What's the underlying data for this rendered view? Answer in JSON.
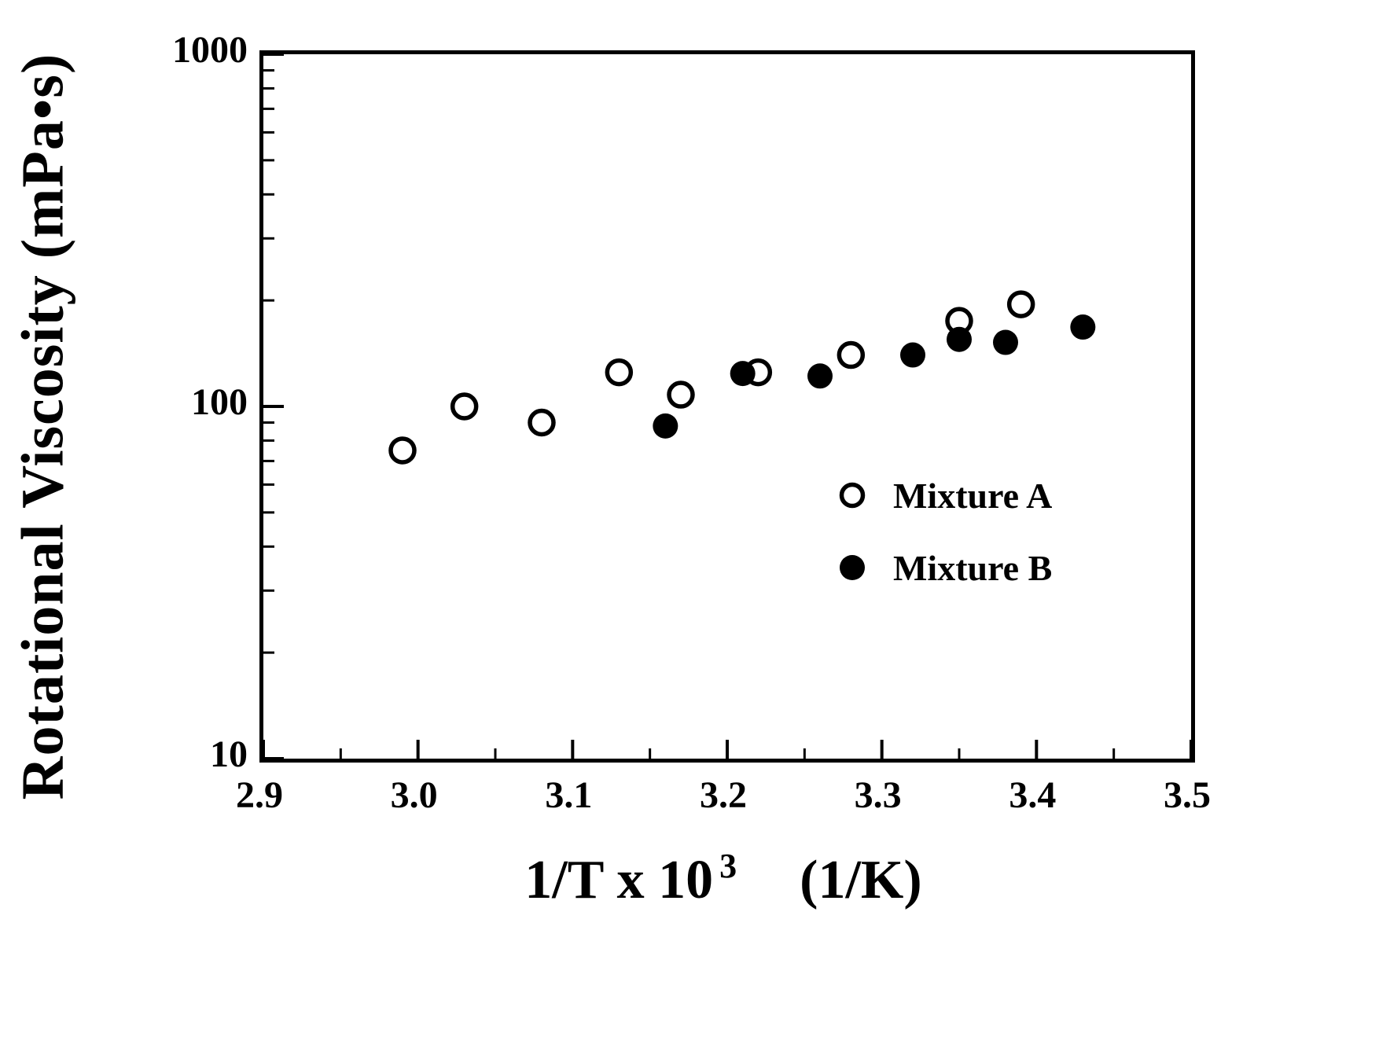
{
  "chart_data": {
    "type": "scatter",
    "title": "",
    "xlabel": "1/T x 10^3 (1/K)",
    "xlabel_parts": {
      "base": "1/T x 10",
      "sup": "3",
      "unit": "(1/K)"
    },
    "ylabel": "Rotational Viscosity (mPa•s)",
    "x_axis": {
      "min": 2.9,
      "max": 3.5,
      "ticks": [
        2.9,
        3.0,
        3.1,
        3.2,
        3.3,
        3.4,
        3.5
      ],
      "tick_labels": [
        "2.9",
        "3.0",
        "3.1",
        "3.2",
        "3.3",
        "3.4",
        "3.5"
      ],
      "minor_step": 0.05,
      "scale": "linear"
    },
    "y_axis": {
      "min": 10,
      "max": 1000,
      "ticks": [
        10,
        100,
        1000
      ],
      "tick_labels": [
        "10",
        "100",
        "1000"
      ],
      "scale": "log"
    },
    "grid": "off",
    "legend": {
      "position": "inside-right",
      "entries": [
        {
          "label": "Mixture A",
          "marker": "open-circle"
        },
        {
          "label": "Mixture B",
          "marker": "filled-circle"
        }
      ]
    },
    "series": [
      {
        "name": "Mixture A",
        "marker": "open-circle",
        "points": [
          [
            2.99,
            75
          ],
          [
            3.03,
            100
          ],
          [
            3.08,
            90
          ],
          [
            3.13,
            125
          ],
          [
            3.17,
            108
          ],
          [
            3.22,
            125
          ],
          [
            3.28,
            140
          ],
          [
            3.35,
            175
          ],
          [
            3.39,
            195
          ]
        ]
      },
      {
        "name": "Mixture B",
        "marker": "filled-circle",
        "points": [
          [
            3.16,
            88
          ],
          [
            3.21,
            124
          ],
          [
            3.26,
            122
          ],
          [
            3.32,
            140
          ],
          [
            3.35,
            155
          ],
          [
            3.38,
            152
          ],
          [
            3.43,
            168
          ]
        ]
      }
    ],
    "colors": {
      "foreground": "#000000",
      "background": "#ffffff"
    }
  }
}
